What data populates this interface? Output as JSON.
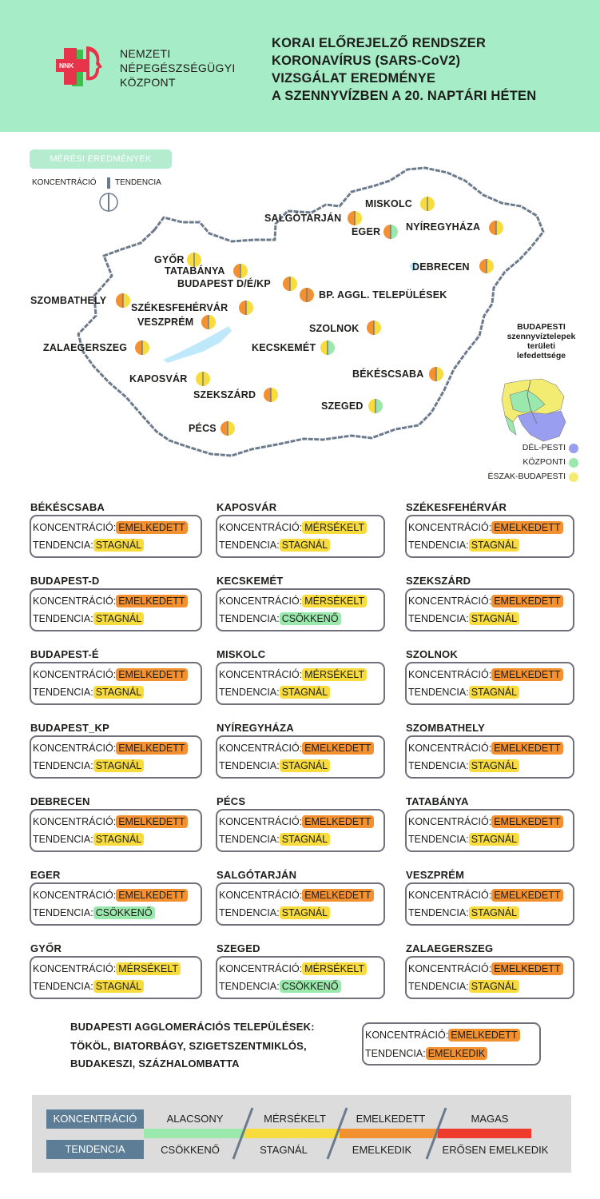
{
  "org": {
    "line1": "NEMZETI",
    "line2": "NÉPEGÉSZSÉGÜGYI",
    "line3": "KÖZPONT",
    "logo_text": "NNK"
  },
  "title": {
    "line1": "KORAI ELŐREJELZŐ RENDSZER",
    "line2": "KORONAVÍRUS (SARS-CoV2)",
    "line3": "VIZSGÁLAT EREDMÉNYE",
    "line4": "A SZENNYVÍZBEN A 20. NAPTÁRI HÉTEN"
  },
  "map_key": {
    "title": "MÉRÉSI EREDMÉNYEK",
    "left": "KONCENTRÁCIÓ",
    "right": "TENDENCIA"
  },
  "map_labels": [
    {
      "name": "MISKOLC",
      "left": "#f8dc3e",
      "right": "#f8dc3e"
    },
    {
      "name": "SALGÓTARJÁN",
      "left": "#f3902f",
      "right": "#f8dc3e"
    },
    {
      "name": "EGER",
      "left": "#f3902f",
      "right": "#9ae8ac"
    },
    {
      "name": "NYÍREGYHÁZA",
      "left": "#f3902f",
      "right": "#f8dc3e"
    },
    {
      "name": "GYŐR",
      "left": "#f8dc3e",
      "right": "#f8dc3e"
    },
    {
      "name": "TATABÁNYA",
      "left": "#f3902f",
      "right": "#f8dc3e"
    },
    {
      "name": "DEBRECEN",
      "left": "#f3902f",
      "right": "#f8dc3e"
    },
    {
      "name": "BUDAPEST D/É/KP",
      "left": "#f3902f",
      "right": "#f8dc3e"
    },
    {
      "name": "BP. AGGL. TELEPÜLÉSEK",
      "left": "#f3902f",
      "right": "#f3902f"
    },
    {
      "name": "SZOMBATHELY",
      "left": "#f3902f",
      "right": "#f8dc3e"
    },
    {
      "name": "SZÉKESFEHÉRVÁR",
      "left": "#f3902f",
      "right": "#f8dc3e"
    },
    {
      "name": "VESZPRÉM",
      "left": "#f3902f",
      "right": "#f8dc3e"
    },
    {
      "name": "SZOLNOK",
      "left": "#f3902f",
      "right": "#f8dc3e"
    },
    {
      "name": "ZALAEGERSZEG",
      "left": "#f3902f",
      "right": "#f8dc3e"
    },
    {
      "name": "KECSKEMÉT",
      "left": "#f8dc3e",
      "right": "#9ae8ac"
    },
    {
      "name": "KAPOSVÁR",
      "left": "#f8dc3e",
      "right": "#f8dc3e"
    },
    {
      "name": "BÉKÉSCSABA",
      "left": "#f3902f",
      "right": "#f8dc3e"
    },
    {
      "name": "SZEKSZÁRD",
      "left": "#f3902f",
      "right": "#f8dc3e"
    },
    {
      "name": "SZEGED",
      "left": "#f8dc3e",
      "right": "#9ae8ac"
    },
    {
      "name": "PÉCS",
      "left": "#f3902f",
      "right": "#f8dc3e"
    }
  ],
  "bp_inset": {
    "l1": "BUDAPESTI",
    "l2": "szennyvíztelepek",
    "l3": "területi",
    "l4": "lefedettsége",
    "legend": [
      {
        "label": "DÉL-PESTI",
        "color": "#9a9ef0"
      },
      {
        "label": "KÖZPONTI",
        "color": "#9ae8ac"
      },
      {
        "label": "ÉSZAK-BUDAPESTI",
        "color": "#f2ed72"
      }
    ]
  },
  "labels": {
    "konc": "KONCENTRÁCIÓ:",
    "tend": "TENDENCIA:"
  },
  "cards": [
    {
      "city": "BÉKÉSCSABA",
      "konc": "EMELKEDETT",
      "tend": "STAGNÁL"
    },
    {
      "city": "KAPOSVÁR",
      "konc": "MÉRSÉKELT",
      "tend": "STAGNÁL"
    },
    {
      "city": "SZÉKESFEHÉRVÁR",
      "konc": "EMELKEDETT",
      "tend": "STAGNÁL"
    },
    {
      "city": "BUDAPEST-D",
      "konc": "EMELKEDETT",
      "tend": "STAGNÁL"
    },
    {
      "city": "KECSKEMÉT",
      "konc": "MÉRSÉKELT",
      "tend": "CSÖKKENŐ"
    },
    {
      "city": "SZEKSZÁRD",
      "konc": "EMELKEDETT",
      "tend": "STAGNÁL"
    },
    {
      "city": "BUDAPEST-É",
      "konc": "EMELKEDETT",
      "tend": "STAGNÁL"
    },
    {
      "city": "MISKOLC",
      "konc": "MÉRSÉKELT",
      "tend": "STAGNÁL"
    },
    {
      "city": "SZOLNOK",
      "konc": "EMELKEDETT",
      "tend": "STAGNÁL"
    },
    {
      "city": "BUDAPEST_KP",
      "konc": "EMELKEDETT",
      "tend": "STAGNÁL"
    },
    {
      "city": "NYÍREGYHÁZA",
      "konc": "EMELKEDETT",
      "tend": "STAGNÁL"
    },
    {
      "city": "SZOMBATHELY",
      "konc": "EMELKEDETT",
      "tend": "STAGNÁL"
    },
    {
      "city": "DEBRECEN",
      "konc": "EMELKEDETT",
      "tend": "STAGNÁL"
    },
    {
      "city": "PÉCS",
      "konc": "EMELKEDETT",
      "tend": "STAGNÁL"
    },
    {
      "city": "TATABÁNYA",
      "konc": "EMELKEDETT",
      "tend": "STAGNÁL"
    },
    {
      "city": "EGER",
      "konc": "EMELKEDETT",
      "tend": "CSÖKKENŐ"
    },
    {
      "city": "SALGÓTARJÁN",
      "konc": "EMELKEDETT",
      "tend": "STAGNÁL"
    },
    {
      "city": "VESZPRÉM",
      "konc": "EMELKEDETT",
      "tend": "STAGNÁL"
    },
    {
      "city": "GYŐR",
      "konc": "MÉRSÉKELT",
      "tend": "STAGNÁL"
    },
    {
      "city": "SZEGED",
      "konc": "MÉRSÉKELT",
      "tend": "CSÖKKENŐ"
    },
    {
      "city": "ZALAEGERSZEG",
      "konc": "EMELKEDETT",
      "tend": "STAGNÁL"
    }
  ],
  "agglo": {
    "l1": "BUDAPESTI AGGLOMERÁCIÓS TELEPÜLÉSEK:",
    "l2": "TÖKÖL, BIATORBÁGY, SZIGETSZENTMIKLÓS,",
    "l3": "BUDAKESZI, SZÁZHALOMBATTA",
    "konc": "EMELKEDETT",
    "tend": "EMELKEDIK"
  },
  "legend": {
    "konc_label": "KONCENTRÁCIÓ",
    "tend_label": "TENDENCIA",
    "konc": [
      "ALACSONY",
      "MÉRSÉKELT",
      "EMELKEDETT",
      "MAGAS"
    ],
    "tend": [
      "CSÖKKENŐ",
      "STAGNÁL",
      "EMELKEDIK",
      "ERŐSEN EMELKEDIK"
    ],
    "colors": [
      "#9ae8ac",
      "#f8dc3e",
      "#f3902f",
      "#ee3b2e"
    ]
  }
}
